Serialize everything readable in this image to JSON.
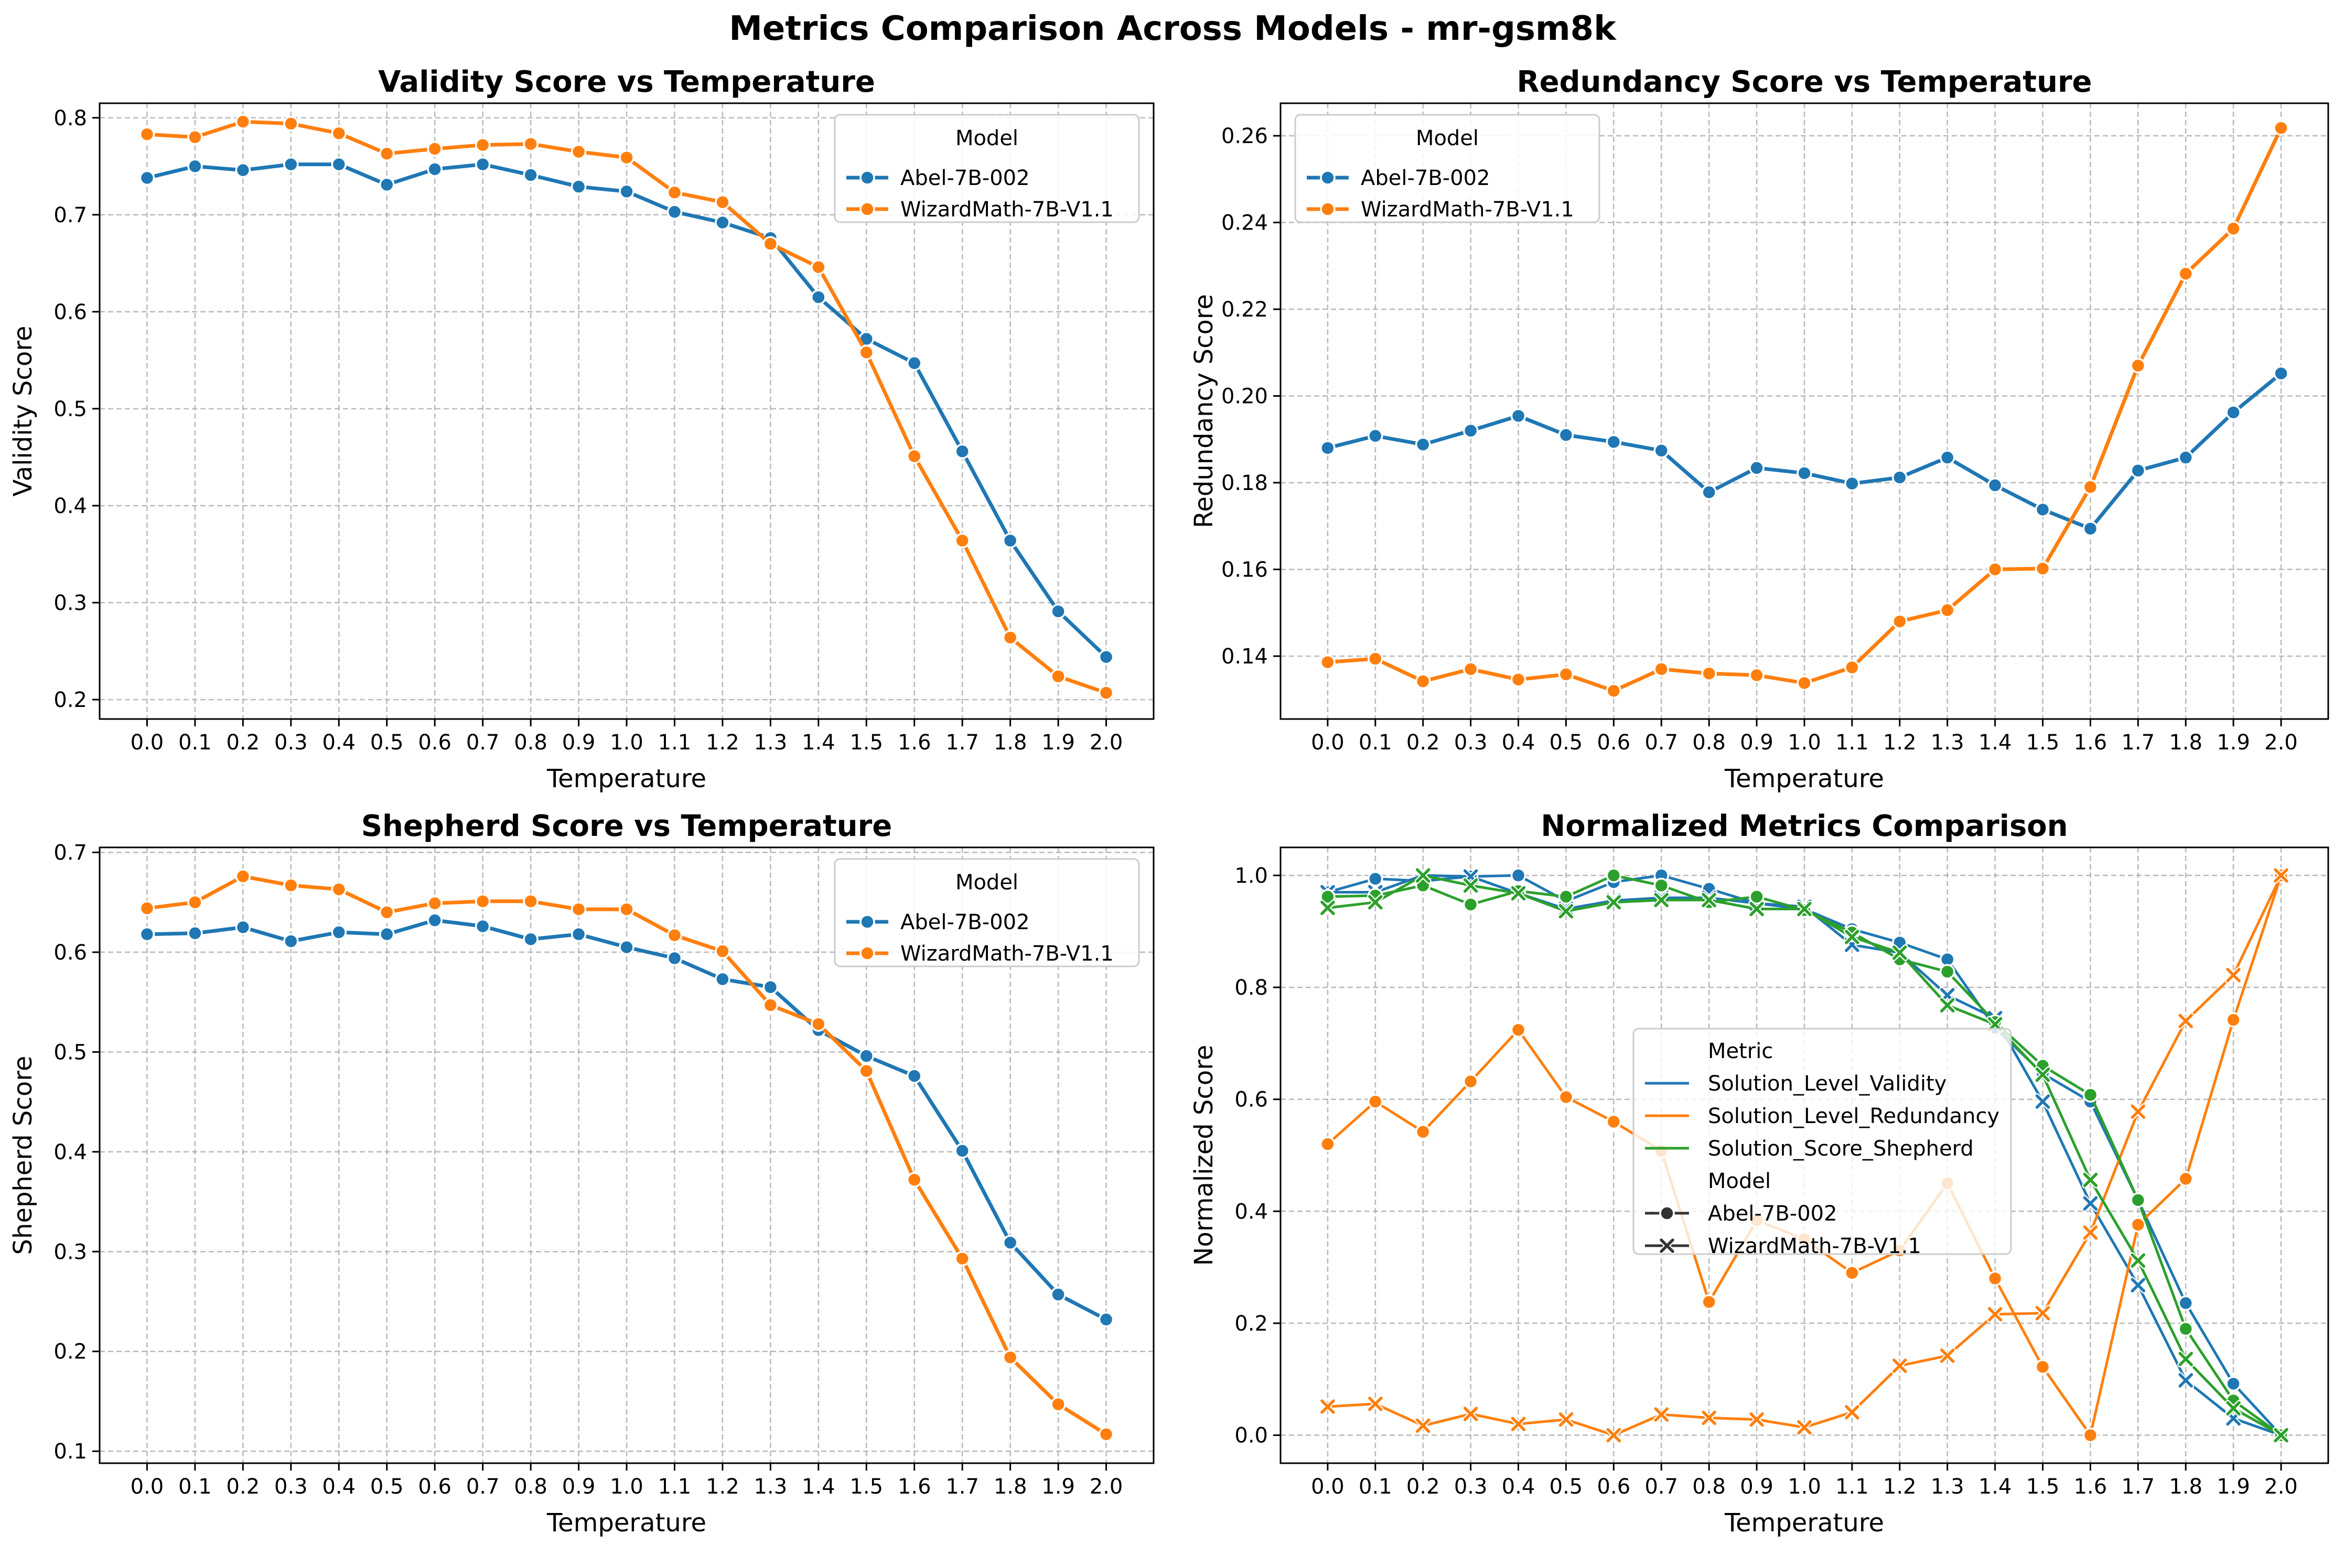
{
  "figure": {
    "title": "Metrics Comparison Across Models - mr-gsm8k"
  },
  "colors": {
    "abel": "#1f77b4",
    "wizard": "#ff7f0e",
    "shepherd": "#2ca02c",
    "grid": "#b0b0b0"
  },
  "chart_data": [
    {
      "type": "line",
      "title": "Validity Score vs Temperature",
      "xlabel": "Temperature",
      "ylabel": "Validity Score",
      "x": [
        "0.0",
        "0.1",
        "0.2",
        "0.3",
        "0.4",
        "0.5",
        "0.6",
        "0.7",
        "0.8",
        "0.9",
        "1.0",
        "1.1",
        "1.2",
        "1.3",
        "1.4",
        "1.5",
        "1.6",
        "1.7",
        "1.8",
        "1.9",
        "2.0"
      ],
      "yticks": [
        "0.2",
        "0.3",
        "0.4",
        "0.5",
        "0.6",
        "0.7",
        "0.8"
      ],
      "ylim": [
        0.18,
        0.815
      ],
      "grid": true,
      "legend": {
        "title": "Model",
        "position": "top-right"
      },
      "series": [
        {
          "name": "Abel-7B-002",
          "color": "#1f77b4",
          "marker": "circle",
          "values": [
            0.738,
            0.75,
            0.746,
            0.752,
            0.752,
            0.731,
            0.747,
            0.752,
            0.741,
            0.729,
            0.724,
            0.703,
            0.692,
            0.676,
            0.615,
            0.572,
            0.547,
            0.456,
            0.364,
            0.291,
            0.244
          ]
        },
        {
          "name": "WizardMath-7B-V1.1",
          "color": "#ff7f0e",
          "marker": "circle",
          "values": [
            0.783,
            0.78,
            0.796,
            0.794,
            0.784,
            0.763,
            0.768,
            0.772,
            0.773,
            0.765,
            0.759,
            0.723,
            0.713,
            0.67,
            0.646,
            0.558,
            0.451,
            0.364,
            0.264,
            0.224,
            0.207
          ]
        }
      ]
    },
    {
      "type": "line",
      "title": "Redundancy Score vs Temperature",
      "xlabel": "Temperature",
      "ylabel": "Redundancy Score",
      "x": [
        "0.0",
        "0.1",
        "0.2",
        "0.3",
        "0.4",
        "0.5",
        "0.6",
        "0.7",
        "0.8",
        "0.9",
        "1.0",
        "1.1",
        "1.2",
        "1.3",
        "1.4",
        "1.5",
        "1.6",
        "1.7",
        "1.8",
        "1.9",
        "2.0"
      ],
      "yticks": [
        "0.14",
        "0.16",
        "0.18",
        "0.20",
        "0.22",
        "0.24",
        "0.26"
      ],
      "ylim": [
        0.1255,
        0.2675
      ],
      "grid": true,
      "legend": {
        "title": "Model",
        "position": "top-left"
      },
      "series": [
        {
          "name": "Abel-7B-002",
          "color": "#1f77b4",
          "marker": "circle",
          "values": [
            0.188,
            0.1908,
            0.1888,
            0.192,
            0.1954,
            0.191,
            0.1894,
            0.1874,
            0.1778,
            0.1834,
            0.1822,
            0.1798,
            0.1812,
            0.1858,
            0.1794,
            0.1738,
            0.1694,
            0.1828,
            0.1858,
            0.1962,
            0.2052
          ]
        },
        {
          "name": "WizardMath-7B-V1.1",
          "color": "#ff7f0e",
          "marker": "circle",
          "values": [
            0.1386,
            0.1394,
            0.1342,
            0.137,
            0.1346,
            0.1358,
            0.132,
            0.137,
            0.136,
            0.1356,
            0.1338,
            0.1374,
            0.148,
            0.1506,
            0.16,
            0.1602,
            0.179,
            0.207,
            0.2282,
            0.2386,
            0.2618
          ]
        }
      ]
    },
    {
      "type": "line",
      "title": "Shepherd Score vs Temperature",
      "xlabel": "Temperature",
      "ylabel": "Shepherd Score",
      "x": [
        "0.0",
        "0.1",
        "0.2",
        "0.3",
        "0.4",
        "0.5",
        "0.6",
        "0.7",
        "0.8",
        "0.9",
        "1.0",
        "1.1",
        "1.2",
        "1.3",
        "1.4",
        "1.5",
        "1.6",
        "1.7",
        "1.8",
        "1.9",
        "2.0"
      ],
      "yticks": [
        "0.1",
        "0.2",
        "0.3",
        "0.4",
        "0.5",
        "0.6",
        "0.7"
      ],
      "ylim": [
        0.088,
        0.705
      ],
      "grid": true,
      "legend": {
        "title": "Model",
        "position": "top-right"
      },
      "series": [
        {
          "name": "Abel-7B-002",
          "color": "#1f77b4",
          "marker": "circle",
          "values": [
            0.618,
            0.619,
            0.625,
            0.611,
            0.62,
            0.618,
            0.632,
            0.626,
            0.613,
            0.618,
            0.605,
            0.594,
            0.573,
            0.565,
            0.522,
            0.496,
            0.476,
            0.401,
            0.309,
            0.257,
            0.232
          ]
        },
        {
          "name": "WizardMath-7B-V1.1",
          "color": "#ff7f0e",
          "marker": "circle",
          "values": [
            0.644,
            0.65,
            0.676,
            0.667,
            0.663,
            0.64,
            0.649,
            0.651,
            0.651,
            0.643,
            0.643,
            0.617,
            0.601,
            0.547,
            0.528,
            0.481,
            0.372,
            0.293,
            0.194,
            0.147,
            0.117
          ]
        }
      ]
    },
    {
      "type": "line",
      "title": "Normalized Metrics Comparison",
      "xlabel": "Temperature",
      "ylabel": "Normalized Score",
      "x": [
        "0.0",
        "0.1",
        "0.2",
        "0.3",
        "0.4",
        "0.5",
        "0.6",
        "0.7",
        "0.8",
        "0.9",
        "1.0",
        "1.1",
        "1.2",
        "1.3",
        "1.4",
        "1.5",
        "1.6",
        "1.7",
        "1.8",
        "1.9",
        "2.0"
      ],
      "yticks": [
        "0.0",
        "0.2",
        "0.4",
        "0.6",
        "0.8",
        "1.0"
      ],
      "ylim": [
        -0.05,
        1.05
      ],
      "grid": true,
      "legend": {
        "title": "Metric",
        "position": "center",
        "metrics": [
          {
            "name": "Solution_Level_Validity",
            "color": "#1f77b4"
          },
          {
            "name": "Solution_Level_Redundancy",
            "color": "#ff7f0e"
          },
          {
            "name": "Solution_Score_Shepherd",
            "color": "#2ca02c"
          }
        ],
        "model_title": "Model",
        "models": [
          {
            "name": "Abel-7B-002",
            "marker": "circle"
          },
          {
            "name": "WizardMath-7B-V1.1",
            "marker": "x"
          }
        ]
      },
      "series": [
        {
          "metric": "Solution_Level_Validity",
          "model": "Abel-7B-002",
          "color": "#1f77b4",
          "marker": "circle",
          "values": [
            0.97,
            0.994,
            0.99,
            0.998,
            1.0,
            0.954,
            0.988,
            1.0,
            0.976,
            0.95,
            0.94,
            0.904,
            0.88,
            0.85,
            0.728,
            0.646,
            0.596,
            0.42,
            0.236,
            0.092,
            0.0
          ]
        },
        {
          "metric": "Solution_Level_Validity",
          "model": "WizardMath-7B-V1.1",
          "color": "#1f77b4",
          "marker": "x",
          "values": [
            0.97,
            0.97,
            1.0,
            0.998,
            0.968,
            0.94,
            0.955,
            0.96,
            0.96,
            0.95,
            0.944,
            0.876,
            0.862,
            0.786,
            0.745,
            0.596,
            0.414,
            0.268,
            0.098,
            0.03,
            0.0
          ]
        },
        {
          "metric": "Solution_Level_Redundancy",
          "model": "Abel-7B-002",
          "color": "#ff7f0e",
          "marker": "circle",
          "values": [
            0.52,
            0.596,
            0.542,
            0.632,
            0.724,
            0.604,
            0.56,
            0.508,
            0.238,
            0.384,
            0.35,
            0.29,
            0.33,
            0.45,
            0.28,
            0.122,
            0.0,
            0.376,
            0.458,
            0.742,
            1.0
          ]
        },
        {
          "metric": "Solution_Level_Redundancy",
          "model": "WizardMath-7B-V1.1",
          "color": "#ff7f0e",
          "marker": "x",
          "values": [
            0.051,
            0.056,
            0.017,
            0.038,
            0.02,
            0.028,
            0.0,
            0.037,
            0.031,
            0.028,
            0.014,
            0.041,
            0.124,
            0.142,
            0.216,
            0.218,
            0.362,
            0.578,
            0.74,
            0.822,
            1.0
          ]
        },
        {
          "metric": "Solution_Score_Shepherd",
          "model": "Abel-7B-002",
          "color": "#2ca02c",
          "marker": "circle",
          "values": [
            0.962,
            0.964,
            0.982,
            0.948,
            0.972,
            0.962,
            1.0,
            0.982,
            0.952,
            0.962,
            0.938,
            0.898,
            0.85,
            0.828,
            0.738,
            0.66,
            0.608,
            0.42,
            0.19,
            0.062,
            0.0
          ]
        },
        {
          "metric": "Solution_Score_Shepherd",
          "model": "WizardMath-7B-V1.1",
          "color": "#2ca02c",
          "marker": "x",
          "values": [
            0.942,
            0.952,
            1.0,
            0.982,
            0.968,
            0.936,
            0.952,
            0.956,
            0.956,
            0.94,
            0.94,
            0.89,
            0.862,
            0.768,
            0.734,
            0.644,
            0.456,
            0.312,
            0.136,
            0.048,
            0.0
          ]
        }
      ]
    }
  ]
}
